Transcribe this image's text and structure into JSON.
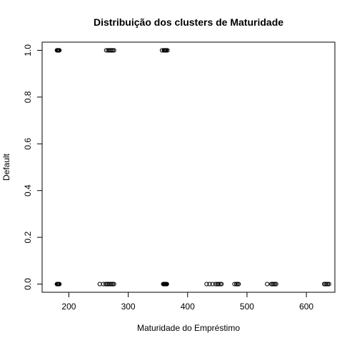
{
  "chart_data": {
    "type": "scatter",
    "title": "Distribuição dos clusters de Maturidade",
    "xlabel": "Maturidade do Empréstimo",
    "ylabel": "Default",
    "xlim": [
      155,
      648
    ],
    "ylim": [
      -0.035,
      1.035
    ],
    "xticks": [
      200,
      300,
      400,
      500,
      600
    ],
    "yticks": [
      0.0,
      0.2,
      0.4,
      0.6,
      0.8,
      1.0
    ],
    "ytick_labels": [
      "0.0",
      "0.2",
      "0.4",
      "0.6",
      "0.8",
      "1.0"
    ],
    "grid": false,
    "legend": "none",
    "marker": "open-circle",
    "color": "#000000",
    "points": [
      {
        "x": 180,
        "y": 1
      },
      {
        "x": 181,
        "y": 1
      },
      {
        "x": 182,
        "y": 1
      },
      {
        "x": 183,
        "y": 1
      },
      {
        "x": 184,
        "y": 1
      },
      {
        "x": 263,
        "y": 1
      },
      {
        "x": 266,
        "y": 1
      },
      {
        "x": 268,
        "y": 1
      },
      {
        "x": 270,
        "y": 1
      },
      {
        "x": 272,
        "y": 1
      },
      {
        "x": 274,
        "y": 1
      },
      {
        "x": 276,
        "y": 1
      },
      {
        "x": 357,
        "y": 1
      },
      {
        "x": 360,
        "y": 1
      },
      {
        "x": 361,
        "y": 1
      },
      {
        "x": 362,
        "y": 1
      },
      {
        "x": 363,
        "y": 1
      },
      {
        "x": 364,
        "y": 1
      },
      {
        "x": 366,
        "y": 1
      },
      {
        "x": 180,
        "y": 0
      },
      {
        "x": 181,
        "y": 0
      },
      {
        "x": 182,
        "y": 0
      },
      {
        "x": 183,
        "y": 0
      },
      {
        "x": 184,
        "y": 0
      },
      {
        "x": 252,
        "y": 0
      },
      {
        "x": 258,
        "y": 0
      },
      {
        "x": 262,
        "y": 0
      },
      {
        "x": 264,
        "y": 0
      },
      {
        "x": 266,
        "y": 0
      },
      {
        "x": 268,
        "y": 0
      },
      {
        "x": 270,
        "y": 0
      },
      {
        "x": 272,
        "y": 0
      },
      {
        "x": 274,
        "y": 0
      },
      {
        "x": 276,
        "y": 0
      },
      {
        "x": 359,
        "y": 0
      },
      {
        "x": 360,
        "y": 0
      },
      {
        "x": 361,
        "y": 0
      },
      {
        "x": 362,
        "y": 0
      },
      {
        "x": 363,
        "y": 0
      },
      {
        "x": 364,
        "y": 0
      },
      {
        "x": 365,
        "y": 0
      },
      {
        "x": 432,
        "y": 0
      },
      {
        "x": 437,
        "y": 0
      },
      {
        "x": 442,
        "y": 0
      },
      {
        "x": 447,
        "y": 0
      },
      {
        "x": 450,
        "y": 0
      },
      {
        "x": 452,
        "y": 0
      },
      {
        "x": 455,
        "y": 0
      },
      {
        "x": 457,
        "y": 0
      },
      {
        "x": 479,
        "y": 0
      },
      {
        "x": 482,
        "y": 0
      },
      {
        "x": 484,
        "y": 0
      },
      {
        "x": 486,
        "y": 0
      },
      {
        "x": 534,
        "y": 0
      },
      {
        "x": 541,
        "y": 0
      },
      {
        "x": 543,
        "y": 0
      },
      {
        "x": 545,
        "y": 0
      },
      {
        "x": 547,
        "y": 0
      },
      {
        "x": 549,
        "y": 0
      },
      {
        "x": 630,
        "y": 0
      },
      {
        "x": 632,
        "y": 0
      },
      {
        "x": 634,
        "y": 0
      },
      {
        "x": 636,
        "y": 0
      },
      {
        "x": 638,
        "y": 0
      }
    ]
  }
}
